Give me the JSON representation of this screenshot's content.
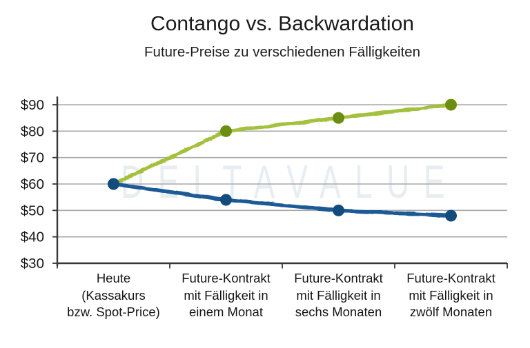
{
  "chart_data": {
    "type": "line",
    "title": "Contango vs. Backwardation",
    "subtitle": "Future-Preise zu verschiedenen Fälligkeiten",
    "categories": [
      "Heute\n(Kassakurs\nbzw. Spot-Price)",
      "Future-Kontrakt\nmit Fälligkeit in\neinem Monat",
      "Future-Kontrakt\nmit Fälligkeit in\nsechs Monaten",
      "Future-Kontrakt\nmit Fälligkeit in\nzwölf Monaten"
    ],
    "series": [
      {
        "name": "Contango",
        "values": [
          60,
          80,
          85,
          90
        ],
        "line_color": "#a3c13d",
        "marker_color": "#6b8e11"
      },
      {
        "name": "Backwardation",
        "values": [
          60,
          54,
          50,
          48
        ],
        "line_color": "#1b5a96",
        "marker_color": "#124c7d"
      }
    ],
    "y_tick_labels": [
      "$90",
      "$80",
      "$70",
      "$60",
      "$50",
      "$40",
      "$30"
    ],
    "ylim": [
      30,
      90
    ],
    "xlabel": "",
    "ylabel": "",
    "grid": true,
    "legend_position": "none"
  },
  "watermark": {
    "text": "DELTAVALUE",
    "color": "#e8edf1"
  },
  "style_colors": {
    "grid": "#a8a8a8",
    "axis": "#383838",
    "text": "#1a1a1a",
    "background": "#ffffff"
  }
}
